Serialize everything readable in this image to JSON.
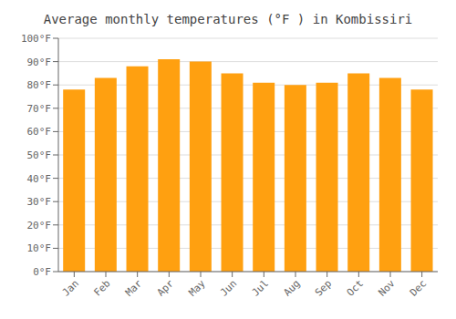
{
  "chart_data": {
    "type": "bar",
    "title": "Average monthly temperatures (°F ) in Kombissiri",
    "categories": [
      "Jan",
      "Feb",
      "Mar",
      "Apr",
      "May",
      "Jun",
      "Jul",
      "Aug",
      "Sep",
      "Oct",
      "Nov",
      "Dec"
    ],
    "values": [
      78,
      83,
      88,
      91,
      90,
      85,
      81,
      80,
      81,
      85,
      83,
      78
    ],
    "color": "#FFA010",
    "ylim": [
      0,
      100
    ],
    "yticks": [
      {
        "value": 0,
        "label": "0°F"
      },
      {
        "value": 10,
        "label": "10°F"
      },
      {
        "value": 20,
        "label": "20°F"
      },
      {
        "value": 30,
        "label": "30°F"
      },
      {
        "value": 40,
        "label": "40°F"
      },
      {
        "value": 50,
        "label": "50°F"
      },
      {
        "value": 60,
        "label": "60°F"
      },
      {
        "value": 70,
        "label": "70°F"
      },
      {
        "value": 80,
        "label": "80°F"
      },
      {
        "value": 90,
        "label": "90°F"
      },
      {
        "value": 100,
        "label": "100°F"
      }
    ],
    "grid": true
  }
}
